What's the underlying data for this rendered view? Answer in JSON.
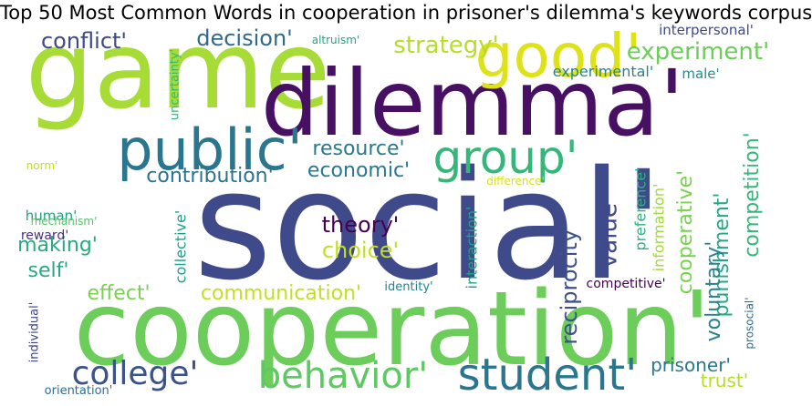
{
  "title": "Top 50 Most Common Words in cooperation in prisoner's dilemma's keywords corpus",
  "words": [
    {
      "text": "social'",
      "color": "#3f4a8a"
    },
    {
      "text": "cooperation'",
      "color": "#6ccd5a"
    },
    {
      "text": "game",
      "color": "#a7db35"
    },
    {
      "text": "dilemma'",
      "color": "#471063"
    },
    {
      "text": "good'",
      "color": "#dde318"
    },
    {
      "text": "public'",
      "color": "#2a768e"
    },
    {
      "text": "student'",
      "color": "#2a768e"
    },
    {
      "text": "behavior'",
      "color": "#5ec962"
    },
    {
      "text": "group'",
      "color": "#35b779"
    },
    {
      "text": "college'",
      "color": "#3b528b"
    },
    {
      "text": "experiment'",
      "color": "#6ccd5a"
    },
    {
      "text": "strategy'",
      "color": "#b5de2b"
    },
    {
      "text": "conflict'",
      "color": "#3e4989"
    },
    {
      "text": "decision'",
      "color": "#31688e"
    },
    {
      "text": "resource'",
      "color": "#2a788e"
    },
    {
      "text": "economic'",
      "color": "#2a788e"
    },
    {
      "text": "contribution'",
      "color": "#2c728e"
    },
    {
      "text": "theory'",
      "color": "#440154"
    },
    {
      "text": "choice'",
      "color": "#c2df23"
    },
    {
      "text": "making'",
      "color": "#25ab82"
    },
    {
      "text": "self'",
      "color": "#25ab82"
    },
    {
      "text": "effect'",
      "color": "#7ad151"
    },
    {
      "text": "communication'",
      "color": "#c2df23"
    },
    {
      "text": "value'",
      "color": "#3e4989"
    },
    {
      "text": "reciprocity'",
      "color": "#3b528b"
    },
    {
      "text": "cooperative'",
      "color": "#7ad151"
    },
    {
      "text": "punishment'",
      "color": "#22a884"
    },
    {
      "text": "competition'",
      "color": "#35b779"
    },
    {
      "text": "voluntary'",
      "color": "#26828e"
    },
    {
      "text": "trust'",
      "color": "#b5de2b"
    },
    {
      "text": "prisoner'",
      "color": "#2a788e"
    },
    {
      "text": "experimental'",
      "color": "#26828e"
    },
    {
      "text": "male'",
      "color": "#228c8d"
    },
    {
      "text": "interpersonal'",
      "color": "#3e4a89"
    },
    {
      "text": "altruism'",
      "color": "#20a486"
    },
    {
      "text": "uncertainty'",
      "color": "#35b779"
    },
    {
      "text": "norm'",
      "color": "#bddf26"
    },
    {
      "text": "human'",
      "color": "#1fa088"
    },
    {
      "text": "reward'",
      "color": "#472f7d"
    },
    {
      "text": "mechanism'",
      "color": "#52c569"
    },
    {
      "text": "collective'",
      "color": "#1f9e89"
    },
    {
      "text": "difference'",
      "color": "#d8e219"
    },
    {
      "text": "interaction'",
      "color": "#20a486"
    },
    {
      "text": "preference'",
      "color": "#2db27d"
    },
    {
      "text": "information'",
      "color": "#a0da39"
    },
    {
      "text": "identity'",
      "color": "#26828e"
    },
    {
      "text": "competitive'",
      "color": "#440154"
    },
    {
      "text": "individual'",
      "color": "#414487"
    },
    {
      "text": "prosocial'",
      "color": "#31688e"
    },
    {
      "text": "orientation'",
      "color": "#2e6e8e"
    }
  ]
}
